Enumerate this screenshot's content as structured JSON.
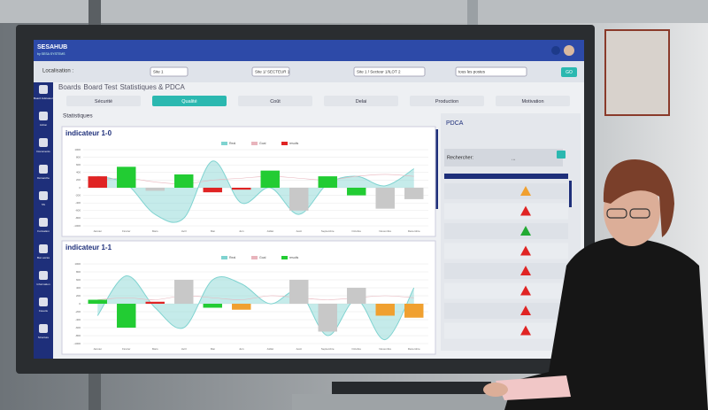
{
  "header": {
    "brand": "SESAHUB",
    "brand_sub": "by SESA SYSTEMS"
  },
  "filters": {
    "label": "Localisation :",
    "options": [
      "Site 1",
      "Site 1/ SECTEUR 1",
      "Site 1 / Secteur 1/ILOT 2",
      "tous les postes"
    ],
    "button": "GO"
  },
  "sidebar": [
    "Board Indicateur",
    "Action",
    "Documents",
    "Démarche",
    "5S",
    "Formation",
    "Bon accès",
    "Information",
    "Favoris",
    "Structure"
  ],
  "breadcrumb": [
    "Boards",
    "Board Test",
    "Statistiques & PDCA"
  ],
  "tabs": [
    "Sécurité",
    "Qualité",
    "Coût",
    "Delai",
    "Production",
    "Motivation"
  ],
  "active_tab": 1,
  "section": "Statistiques",
  "charts": [
    {
      "type": "bar",
      "title": "indicateur 1-0",
      "categories": [
        "Janvier",
        "Février",
        "Mars",
        "Avril",
        "Mai",
        "Juin",
        "Juillet",
        "Août",
        "Septembre",
        "Octobre",
        "Novembre",
        "Décembre"
      ],
      "ylim": [
        -1000,
        1000
      ],
      "yticks": [
        1000,
        800,
        600,
        400,
        200,
        0,
        -200,
        -400,
        -600,
        -800,
        -1000
      ],
      "series": [
        {
          "name": "Real",
          "color": "#7fd3d0",
          "type": "area",
          "values": [
            300,
            100,
            -700,
            -800,
            700,
            -400,
            0,
            -700,
            100,
            300,
            50,
            500
          ]
        },
        {
          "name": "Goal",
          "color": "#e8b4bc",
          "type": "line",
          "values": [
            200,
            250,
            150,
            100,
            200,
            250,
            300,
            250,
            200,
            300,
            350,
            300
          ]
        },
        {
          "name": "results",
          "color": "#e02424",
          "type": "bar",
          "values": [
            300,
            550,
            -80,
            350,
            -120,
            -50,
            450,
            -600,
            300,
            -200,
            -550,
            -300
          ],
          "colors": [
            "#e02424",
            "#22cc33",
            "#c8c8c8",
            "#22cc33",
            "#e02424",
            "#e02424",
            "#22cc33",
            "#c8c8c8",
            "#22cc33",
            "#22cc33",
            "#c8c8c8",
            "#c8c8c8"
          ]
        }
      ]
    },
    {
      "type": "bar",
      "title": "indicateur 1-1",
      "categories": [
        "Janvier",
        "Février",
        "Mars",
        "Avril",
        "Mai",
        "Juin",
        "Juillet",
        "Août",
        "Septembre",
        "Octobre",
        "Novembre",
        "Décembre"
      ],
      "ylim": [
        -1000,
        1000
      ],
      "yticks": [
        1000,
        800,
        600,
        400,
        200,
        0,
        -200,
        -400,
        -600,
        -800,
        -1000
      ],
      "series": [
        {
          "name": "Real",
          "color": "#7fd3d0",
          "type": "area",
          "values": [
            -300,
            700,
            -100,
            -600,
            600,
            500,
            0,
            300,
            -800,
            100,
            -900,
            400
          ]
        },
        {
          "name": "Goal",
          "color": "#e8b4bc",
          "type": "line",
          "values": [
            100,
            150,
            100,
            200,
            150,
            100,
            200,
            150,
            100,
            150,
            200,
            150
          ]
        },
        {
          "name": "results",
          "color": "#22cc33",
          "type": "bar",
          "values": [
            100,
            -600,
            50,
            600,
            -100,
            -150,
            0,
            600,
            -700,
            400,
            -300,
            -350
          ],
          "colors": [
            "#22cc33",
            "#22cc33",
            "#e02424",
            "#c8c8c8",
            "#22cc33",
            "#f0a030",
            "#22cc33",
            "#c8c8c8",
            "#c8c8c8",
            "#c8c8c8",
            "#f0a030",
            "#f0a030"
          ]
        }
      ]
    }
  ],
  "pdca": {
    "title": "PDCA",
    "search_label": "Rechercher:",
    "search_value": "...",
    "statuses": [
      "#f0a030",
      "#e02424",
      "#22aa33",
      "#e02424",
      "#e02424",
      "#e02424",
      "#e02424",
      "#e02424"
    ]
  }
}
